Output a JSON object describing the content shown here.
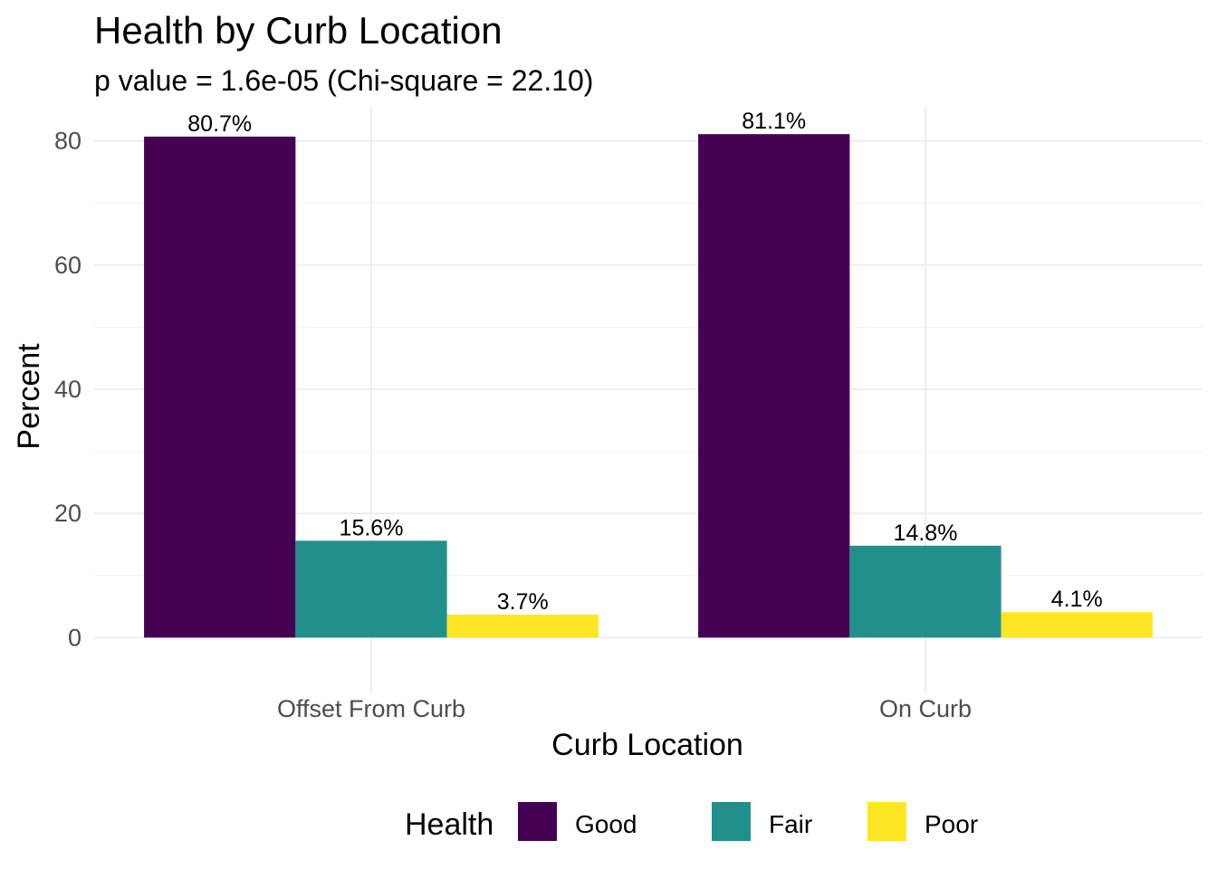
{
  "chart_data": {
    "type": "bar",
    "title": "Health by Curb Location",
    "subtitle": "p value = 1.6e-05 (Chi-square = 22.10)",
    "xlabel": "Curb Location",
    "ylabel": "Percent",
    "categories": [
      "Offset From Curb",
      "On Curb"
    ],
    "series": [
      {
        "name": "Good",
        "color": "#440154",
        "values": [
          80.7,
          81.1
        ],
        "labels": [
          "80.7%",
          "81.1%"
        ]
      },
      {
        "name": "Fair",
        "color": "#21908C",
        "values": [
          15.6,
          14.8
        ],
        "labels": [
          "15.6%",
          "14.8%"
        ]
      },
      {
        "name": "Poor",
        "color": "#FDE725",
        "values": [
          3.7,
          4.1
        ],
        "labels": [
          "3.7%",
          "4.1%"
        ]
      }
    ],
    "y_ticks": [
      0,
      20,
      40,
      60,
      80
    ],
    "ylim": [
      -5.2,
      85.5
    ],
    "grid": true,
    "legend": {
      "title": "Health",
      "position": "bottom"
    }
  }
}
